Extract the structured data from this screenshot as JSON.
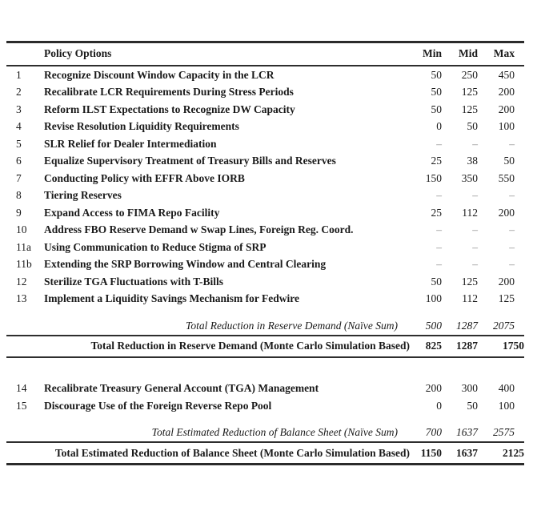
{
  "table": {
    "header": {
      "policy": "Policy Options",
      "min": "Min",
      "mid": "Mid",
      "max": "Max"
    },
    "section1": {
      "rows": [
        {
          "num": "1",
          "label": "Recognize Discount Window Capacity in the LCR",
          "min": "50",
          "mid": "250",
          "max": "450"
        },
        {
          "num": "2",
          "label": "Recalibrate LCR Requirements During Stress Periods",
          "min": "50",
          "mid": "125",
          "max": "200"
        },
        {
          "num": "3",
          "label": "Reform ILST Expectations to Recognize DW Capacity",
          "min": "50",
          "mid": "125",
          "max": "200"
        },
        {
          "num": "4",
          "label": "Revise Resolution Liquidity Requirements",
          "min": "0",
          "mid": "50",
          "max": "100"
        },
        {
          "num": "5",
          "label": "SLR Relief for Dealer Intermediation",
          "min": "–",
          "mid": "–",
          "max": "–"
        },
        {
          "num": "6",
          "label": "Equalize Supervisory Treatment of Treasury Bills and Reserves",
          "min": "25",
          "mid": "38",
          "max": "50"
        },
        {
          "num": "7",
          "label": "Conducting Policy with EFFR Above IORB",
          "min": "150",
          "mid": "350",
          "max": "550"
        },
        {
          "num": "8",
          "label": "Tiering Reserves",
          "min": "–",
          "mid": "–",
          "max": "–"
        },
        {
          "num": "9",
          "label": "Expand Access to FIMA Repo Facility",
          "min": "25",
          "mid": "112",
          "max": "200"
        },
        {
          "num": "10",
          "label": "Address FBO Reserve Demand w Swap Lines, Foreign Reg. Coord.",
          "min": "–",
          "mid": "–",
          "max": "–"
        },
        {
          "num": "11a",
          "label": "Using Communication to Reduce Stigma of SRP",
          "min": "–",
          "mid": "–",
          "max": "–"
        },
        {
          "num": "11b",
          "label": "Extending the SRP Borrowing Window and Central Clearing",
          "min": "–",
          "mid": "–",
          "max": "–"
        },
        {
          "num": "12",
          "label": "Sterilize TGA Fluctuations with T-Bills",
          "min": "50",
          "mid": "125",
          "max": "200"
        },
        {
          "num": "13",
          "label": "Implement a Liquidity Savings Mechanism for Fedwire",
          "min": "100",
          "mid": "112",
          "max": "125"
        }
      ],
      "naive_total": {
        "label": "Total Reduction in Reserve Demand (Naïve Sum)",
        "min": "500",
        "mid": "1287",
        "max": "2075"
      },
      "monte_carlo_total": {
        "label": "Total Reduction in Reserve Demand (Monte Carlo Simulation Based)",
        "min": "825",
        "mid": "1287",
        "max": "1750"
      }
    },
    "section2": {
      "rows": [
        {
          "num": "14",
          "label": "Recalibrate Treasury General Account (TGA) Management",
          "min": "200",
          "mid": "300",
          "max": "400"
        },
        {
          "num": "15",
          "label": "Discourage Use of the Foreign Reverse Repo Pool",
          "min": "0",
          "mid": "50",
          "max": "100"
        }
      ],
      "naive_total": {
        "label": "Total Estimated Reduction of Balance Sheet (Naïve Sum)",
        "min": "700",
        "mid": "1637",
        "max": "2575"
      },
      "monte_carlo_total": {
        "label": "Total Estimated Reduction of Balance Sheet (Monte Carlo Simulation Based)",
        "min": "1150",
        "mid": "1637",
        "max": "2125"
      }
    },
    "colors": {
      "text": "#1a1a1a",
      "rule": "#2e2e2e",
      "dash": "#8a8a8a"
    }
  }
}
